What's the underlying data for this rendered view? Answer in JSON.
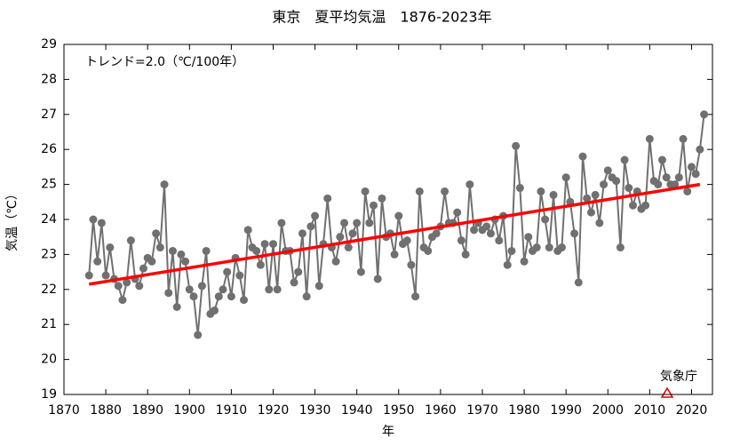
{
  "chart_data": {
    "type": "line",
    "title": "東京　夏平均気温　1876-2023年",
    "annotation": "トレンド=2.0（℃/100年）",
    "source": "気象庁",
    "xlabel": "年",
    "ylabel": "気温（℃）",
    "xlim": [
      1870,
      2025
    ],
    "ylim": [
      19,
      29
    ],
    "xticks": [
      1870,
      1880,
      1890,
      1900,
      1910,
      1920,
      1930,
      1940,
      1950,
      1960,
      1970,
      1980,
      1990,
      2000,
      2010,
      2020
    ],
    "yticks": [
      19,
      20,
      21,
      22,
      23,
      24,
      25,
      26,
      27,
      28,
      29
    ],
    "grid": false,
    "x": [
      1876,
      1877,
      1878,
      1879,
      1880,
      1881,
      1882,
      1883,
      1884,
      1885,
      1886,
      1887,
      1888,
      1889,
      1890,
      1891,
      1892,
      1893,
      1894,
      1895,
      1896,
      1897,
      1898,
      1899,
      1900,
      1901,
      1902,
      1903,
      1904,
      1905,
      1906,
      1907,
      1908,
      1909,
      1910,
      1911,
      1912,
      1913,
      1914,
      1915,
      1916,
      1917,
      1918,
      1919,
      1920,
      1921,
      1922,
      1923,
      1924,
      1925,
      1926,
      1927,
      1928,
      1929,
      1930,
      1931,
      1932,
      1933,
      1934,
      1935,
      1936,
      1937,
      1938,
      1939,
      1940,
      1941,
      1942,
      1943,
      1944,
      1945,
      1946,
      1947,
      1948,
      1949,
      1950,
      1951,
      1952,
      1953,
      1954,
      1955,
      1956,
      1957,
      1958,
      1959,
      1960,
      1961,
      1962,
      1963,
      1964,
      1965,
      1966,
      1967,
      1968,
      1969,
      1970,
      1971,
      1972,
      1973,
      1974,
      1975,
      1976,
      1977,
      1978,
      1979,
      1980,
      1981,
      1982,
      1983,
      1984,
      1985,
      1986,
      1987,
      1988,
      1989,
      1990,
      1991,
      1992,
      1993,
      1994,
      1995,
      1996,
      1997,
      1998,
      1999,
      2000,
      2001,
      2002,
      2003,
      2004,
      2005,
      2006,
      2007,
      2008,
      2009,
      2010,
      2011,
      2012,
      2013,
      2014,
      2015,
      2016,
      2017,
      2018,
      2019,
      2020,
      2021,
      2022,
      2023
    ],
    "series": [
      {
        "color": "#707070",
        "values": [
          22.4,
          24.0,
          22.8,
          23.9,
          22.4,
          23.2,
          22.3,
          22.1,
          21.7,
          22.2,
          23.4,
          22.3,
          22.1,
          22.6,
          22.9,
          22.8,
          23.6,
          23.2,
          25.0,
          21.9,
          23.1,
          21.5,
          23.0,
          22.8,
          22.0,
          21.8,
          20.7,
          22.1,
          23.1,
          21.3,
          21.4,
          21.8,
          22.0,
          22.5,
          21.8,
          22.9,
          22.4,
          21.7,
          23.7,
          23.2,
          23.1,
          22.7,
          23.3,
          22.0,
          23.3,
          22.0,
          23.9,
          23.1,
          23.1,
          22.2,
          22.5,
          23.6,
          21.8,
          23.8,
          24.1,
          22.1,
          23.3,
          24.6,
          23.2,
          22.8,
          23.5,
          23.9,
          23.2,
          23.6,
          23.9,
          22.5,
          24.8,
          23.9,
          24.4,
          22.3,
          24.6,
          23.5,
          23.6,
          23.0,
          24.1,
          23.3,
          23.4,
          22.7,
          21.8,
          24.8,
          23.2,
          23.1,
          23.5,
          23.6,
          23.8,
          24.8,
          23.9,
          23.9,
          24.2,
          23.4,
          23.0,
          25.0,
          23.7,
          23.9,
          23.7,
          23.8,
          23.6,
          24.0,
          23.4,
          24.1,
          22.7,
          23.1,
          26.1,
          24.9,
          22.8,
          23.5,
          23.1,
          23.2,
          24.8,
          24.0,
          23.2,
          24.7,
          23.1,
          23.2,
          25.2,
          24.5,
          23.6,
          22.2,
          25.8,
          24.6,
          24.2,
          24.7,
          23.9,
          25.0,
          25.4,
          25.2,
          25.1,
          23.2,
          25.7,
          24.9,
          24.4,
          24.8,
          24.3,
          24.4,
          26.3,
          25.1,
          25.0,
          25.7,
          25.2,
          25.0,
          25.0,
          25.2,
          26.3,
          24.8,
          25.5,
          25.3,
          26.0,
          27.0
        ]
      }
    ],
    "trend": {
      "color": "#ff0000",
      "x": [
        1876,
        2022
      ],
      "values": [
        22.15,
        25.0
      ]
    }
  }
}
